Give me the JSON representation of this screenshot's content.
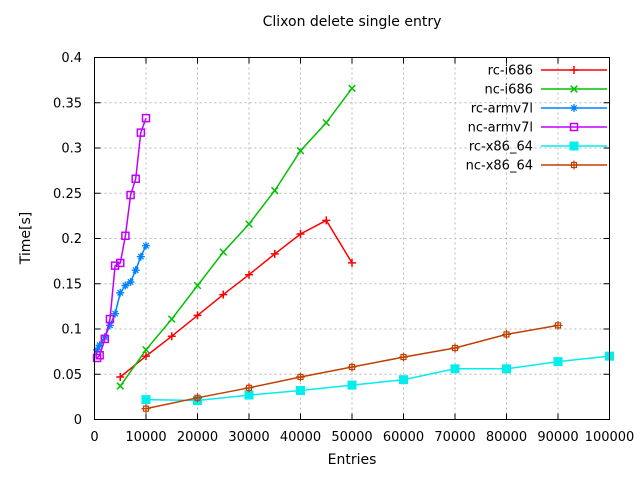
{
  "chart_data": {
    "type": "line",
    "title": "Clixon delete single entry",
    "xlabel": "Entries",
    "ylabel": "Time[s]",
    "xlim": [
      0,
      100000
    ],
    "ylim": [
      0,
      0.4
    ],
    "grid": true,
    "legend_position": "top-right-inside",
    "axis_color": "#000000",
    "grid_color": "#b8b8b8",
    "background_color": "#ffffff",
    "x_ticks": [
      {
        "value": 0,
        "label": "0"
      },
      {
        "value": 10000,
        "label": "10000"
      },
      {
        "value": 20000,
        "label": "20000"
      },
      {
        "value": 30000,
        "label": "30000"
      },
      {
        "value": 40000,
        "label": "40000"
      },
      {
        "value": 50000,
        "label": "50000"
      },
      {
        "value": 60000,
        "label": "60000"
      },
      {
        "value": 70000,
        "label": "70000"
      },
      {
        "value": 80000,
        "label": "80000"
      },
      {
        "value": 90000,
        "label": "90000"
      },
      {
        "value": 100000,
        "label": "100000"
      }
    ],
    "y_ticks": [
      {
        "value": 0,
        "label": "0"
      },
      {
        "value": 0.05,
        "label": "0.05"
      },
      {
        "value": 0.1,
        "label": "0.1"
      },
      {
        "value": 0.15,
        "label": "0.15"
      },
      {
        "value": 0.2,
        "label": "0.2"
      },
      {
        "value": 0.25,
        "label": "0.25"
      },
      {
        "value": 0.3,
        "label": "0.3"
      },
      {
        "value": 0.35,
        "label": "0.35"
      },
      {
        "value": 0.4,
        "label": "0.4"
      }
    ],
    "series": [
      {
        "name": "rc-i686",
        "color": "#ff0000",
        "marker": "plus",
        "points": [
          [
            5000,
            0.047
          ],
          [
            10000,
            0.07
          ],
          [
            15000,
            0.092
          ],
          [
            20000,
            0.115
          ],
          [
            25000,
            0.138
          ],
          [
            30000,
            0.16
          ],
          [
            35000,
            0.183
          ],
          [
            40000,
            0.205
          ],
          [
            45000,
            0.22
          ],
          [
            50000,
            0.173
          ]
        ]
      },
      {
        "name": "nc-i686",
        "color": "#00c000",
        "marker": "cross",
        "points": [
          [
            5000,
            0.037
          ],
          [
            10000,
            0.077
          ],
          [
            15000,
            0.111
          ],
          [
            20000,
            0.148
          ],
          [
            25000,
            0.185
          ],
          [
            30000,
            0.216
          ],
          [
            35000,
            0.253
          ],
          [
            40000,
            0.297
          ],
          [
            45000,
            0.328
          ],
          [
            50000,
            0.366
          ]
        ]
      },
      {
        "name": "rc-armv7l",
        "color": "#0080ff",
        "marker": "asterisk",
        "points": [
          [
            500,
            0.077
          ],
          [
            1000,
            0.082
          ],
          [
            2000,
            0.091
          ],
          [
            3000,
            0.104
          ],
          [
            4000,
            0.117
          ],
          [
            5000,
            0.14
          ],
          [
            6000,
            0.148
          ],
          [
            7000,
            0.152
          ],
          [
            8000,
            0.165
          ],
          [
            9000,
            0.18
          ],
          [
            10000,
            0.192
          ]
        ]
      },
      {
        "name": "nc-armv7l",
        "color": "#c000ff",
        "marker": "open-square",
        "points": [
          [
            500,
            0.068
          ],
          [
            1000,
            0.071
          ],
          [
            2000,
            0.089
          ],
          [
            3000,
            0.111
          ],
          [
            4000,
            0.17
          ],
          [
            5000,
            0.173
          ],
          [
            6000,
            0.203
          ],
          [
            7000,
            0.248
          ],
          [
            8000,
            0.266
          ],
          [
            9000,
            0.317
          ],
          [
            10000,
            0.333
          ]
        ]
      },
      {
        "name": "rc-x86_64",
        "color": "#00eeee",
        "marker": "filled-square",
        "points": [
          [
            10000,
            0.022
          ],
          [
            20000,
            0.021
          ],
          [
            30000,
            0.027
          ],
          [
            40000,
            0.032
          ],
          [
            50000,
            0.038
          ],
          [
            60000,
            0.044
          ],
          [
            70000,
            0.056
          ],
          [
            80000,
            0.056
          ],
          [
            90000,
            0.064
          ],
          [
            100000,
            0.07
          ]
        ]
      },
      {
        "name": "nc-x86_64",
        "color": "#c04000",
        "marker": "square-plus",
        "points": [
          [
            10000,
            0.012
          ],
          [
            20000,
            0.024
          ],
          [
            30000,
            0.035
          ],
          [
            40000,
            0.047
          ],
          [
            50000,
            0.058
          ],
          [
            60000,
            0.069
          ],
          [
            70000,
            0.079
          ],
          [
            80000,
            0.094
          ],
          [
            90000,
            0.104
          ]
        ]
      }
    ]
  }
}
